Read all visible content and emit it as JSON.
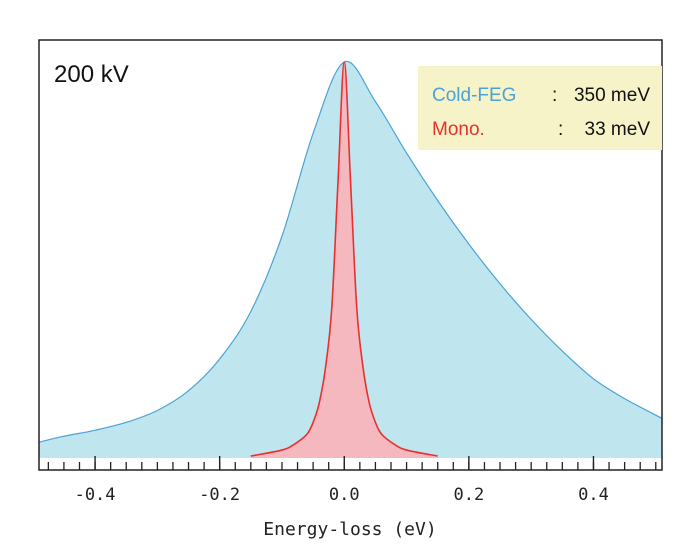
{
  "chart_data": {
    "type": "area",
    "annotation": "200 kV",
    "xlabel": "Energy-loss (eV)",
    "ylabel": "",
    "xlim": [
      -0.49,
      0.51
    ],
    "ylim": [
      0,
      1.0
    ],
    "x_ticks": [
      -0.4,
      -0.2,
      0.0,
      0.2,
      0.4
    ],
    "x_tick_labels": [
      "-0.4",
      "-0.2",
      "0.0",
      "0.2",
      "0.4"
    ],
    "legend_position": "top-right",
    "series": [
      {
        "name": "Cold-FEG",
        "value_label": "350 meV",
        "color": "#4aa3d6",
        "fill": "#bfe6ee",
        "x": [
          -0.49,
          -0.45,
          -0.4,
          -0.35,
          -0.3,
          -0.25,
          -0.2,
          -0.15,
          -0.1,
          -0.05,
          0.0,
          0.05,
          0.1,
          0.15,
          0.2,
          0.25,
          0.3,
          0.35,
          0.4,
          0.45,
          0.51
        ],
        "y": [
          0.04,
          0.055,
          0.07,
          0.09,
          0.12,
          0.17,
          0.25,
          0.37,
          0.56,
          0.82,
          1.0,
          0.9,
          0.77,
          0.65,
          0.54,
          0.44,
          0.35,
          0.27,
          0.2,
          0.15,
          0.1
        ]
      },
      {
        "name": "Mono.",
        "value_label": "33 meV",
        "color": "#e8302e",
        "fill": "#f5b8be",
        "x": [
          -0.15,
          -0.1,
          -0.08,
          -0.06,
          -0.05,
          -0.04,
          -0.03,
          -0.02,
          -0.01,
          0.0,
          0.01,
          0.02,
          0.03,
          0.04,
          0.05,
          0.06,
          0.08,
          0.1,
          0.15
        ],
        "y": [
          0.005,
          0.02,
          0.035,
          0.06,
          0.09,
          0.14,
          0.23,
          0.38,
          0.7,
          1.0,
          0.7,
          0.38,
          0.23,
          0.14,
          0.09,
          0.06,
          0.035,
          0.02,
          0.005
        ]
      }
    ],
    "legend": [
      {
        "name": "Cold-FEG",
        "separator": ":",
        "value": "350 meV"
      },
      {
        "name": "Mono.",
        "separator": ":",
        "value": "33 meV"
      }
    ]
  }
}
